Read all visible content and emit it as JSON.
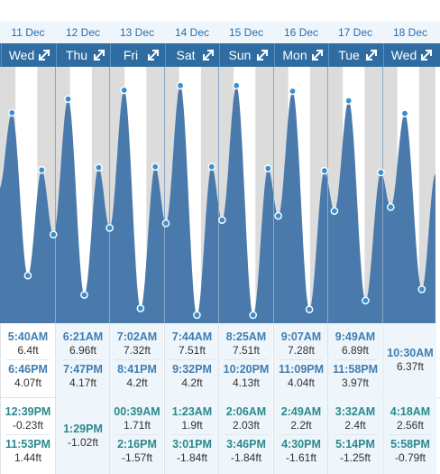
{
  "colors": {
    "tide_fill": "#4a7aab",
    "point": "#3b8fd0",
    "night": "#dcdcdc",
    "day": "#ffffff",
    "header": "#2f6ca1"
  },
  "columns": [
    {
      "date": "11 Dec",
      "day": "Wed",
      "partial": true
    },
    {
      "date": "12 Dec",
      "day": "Thu"
    },
    {
      "date": "13 Dec",
      "day": "Fri"
    },
    {
      "date": "14 Dec",
      "day": "Sat"
    },
    {
      "date": "15 Dec",
      "day": "Sun"
    },
    {
      "date": "16 Dec",
      "day": "Mon"
    },
    {
      "date": "17 Dec",
      "day": "Tue"
    },
    {
      "date": "18 Dec",
      "day": "Wed"
    }
  ],
  "tides": [
    {
      "highs": [
        {
          "time": "5:40AM",
          "height": "6.4ft"
        },
        {
          "time": "6:46PM",
          "height": "4.07ft"
        }
      ],
      "lows": [
        {
          "time": "12:39PM",
          "height": "-0.23ft"
        },
        {
          "time": "11:53PM",
          "height": "1.44ft"
        }
      ]
    },
    {
      "highs": [
        {
          "time": "6:21AM",
          "height": "6.96ft"
        },
        {
          "time": "7:47PM",
          "height": "4.17ft"
        }
      ],
      "lows": [
        {
          "time": "1:29PM",
          "height": "-1.02ft"
        }
      ]
    },
    {
      "highs": [
        {
          "time": "7:02AM",
          "height": "7.32ft"
        },
        {
          "time": "8:41PM",
          "height": "4.2ft"
        }
      ],
      "lows": [
        {
          "time": "00:39AM",
          "height": "1.71ft"
        },
        {
          "time": "2:16PM",
          "height": "-1.57ft"
        }
      ]
    },
    {
      "highs": [
        {
          "time": "7:44AM",
          "height": "7.51ft"
        },
        {
          "time": "9:32PM",
          "height": "4.2ft"
        }
      ],
      "lows": [
        {
          "time": "1:23AM",
          "height": "1.9ft"
        },
        {
          "time": "3:01PM",
          "height": "-1.84ft"
        }
      ]
    },
    {
      "highs": [
        {
          "time": "8:25AM",
          "height": "7.51ft"
        },
        {
          "time": "10:20PM",
          "height": "4.13ft"
        }
      ],
      "lows": [
        {
          "time": "2:06AM",
          "height": "2.03ft"
        },
        {
          "time": "3:46PM",
          "height": "-1.84ft"
        }
      ]
    },
    {
      "highs": [
        {
          "time": "9:07AM",
          "height": "7.28ft"
        },
        {
          "time": "11:09PM",
          "height": "4.04ft"
        }
      ],
      "lows": [
        {
          "time": "2:49AM",
          "height": "2.2ft"
        },
        {
          "time": "4:30PM",
          "height": "-1.61ft"
        }
      ]
    },
    {
      "highs": [
        {
          "time": "9:49AM",
          "height": "6.89ft"
        },
        {
          "time": "11:58PM",
          "height": "3.97ft"
        }
      ],
      "lows": [
        {
          "time": "3:32AM",
          "height": "2.4ft"
        },
        {
          "time": "5:14PM",
          "height": "-1.25ft"
        }
      ]
    },
    {
      "highs": [
        {
          "time": "10:30AM",
          "height": "6.37ft"
        }
      ],
      "lows": [
        {
          "time": "4:18AM",
          "height": "2.56ft"
        },
        {
          "time": "5:58PM",
          "height": "-0.79ft"
        }
      ]
    }
  ],
  "chart_data": {
    "type": "area",
    "ylim": [
      -2.1,
      8.2
    ],
    "x_range_days": [
      0,
      8
    ],
    "extremes": [
      {
        "t": 0.0,
        "h": 3.3
      },
      {
        "t": 0.236,
        "h": 6.4
      },
      {
        "t": 0.527,
        "h": -0.23
      },
      {
        "t": 0.782,
        "h": 4.07
      },
      {
        "t": 0.995,
        "h": 1.44
      },
      {
        "t": 1.265,
        "h": 6.96
      },
      {
        "t": 1.562,
        "h": -1.02
      },
      {
        "t": 1.824,
        "h": 4.17
      },
      {
        "t": 2.027,
        "h": 1.71
      },
      {
        "t": 2.293,
        "h": 7.32
      },
      {
        "t": 2.594,
        "h": -1.57
      },
      {
        "t": 2.862,
        "h": 4.2
      },
      {
        "t": 3.058,
        "h": 1.9
      },
      {
        "t": 3.322,
        "h": 7.51
      },
      {
        "t": 3.626,
        "h": -1.84
      },
      {
        "t": 3.897,
        "h": 4.2
      },
      {
        "t": 4.088,
        "h": 2.03
      },
      {
        "t": 4.351,
        "h": 7.51
      },
      {
        "t": 4.657,
        "h": -1.84
      },
      {
        "t": 4.931,
        "h": 4.13
      },
      {
        "t": 5.118,
        "h": 2.2
      },
      {
        "t": 5.38,
        "h": 7.28
      },
      {
        "t": 5.688,
        "h": -1.61
      },
      {
        "t": 5.965,
        "h": 4.04
      },
      {
        "t": 6.147,
        "h": 2.4
      },
      {
        "t": 6.409,
        "h": 6.89
      },
      {
        "t": 6.718,
        "h": -1.25
      },
      {
        "t": 6.999,
        "h": 3.97
      },
      {
        "t": 7.179,
        "h": 2.56
      },
      {
        "t": 7.438,
        "h": 6.37
      },
      {
        "t": 7.749,
        "h": -0.79
      },
      {
        "t": 8.0,
        "h": 3.9
      }
    ],
    "night": [
      {
        "start": 0.0,
        "end": 0.3
      },
      {
        "start": 0.7,
        "end": 1.3
      },
      {
        "start": 1.7,
        "end": 2.3
      },
      {
        "start": 2.7,
        "end": 3.3
      },
      {
        "start": 3.7,
        "end": 4.3
      },
      {
        "start": 4.7,
        "end": 5.3
      },
      {
        "start": 5.7,
        "end": 6.3
      },
      {
        "start": 6.7,
        "end": 7.3
      },
      {
        "start": 7.7,
        "end": 8.0
      }
    ]
  }
}
